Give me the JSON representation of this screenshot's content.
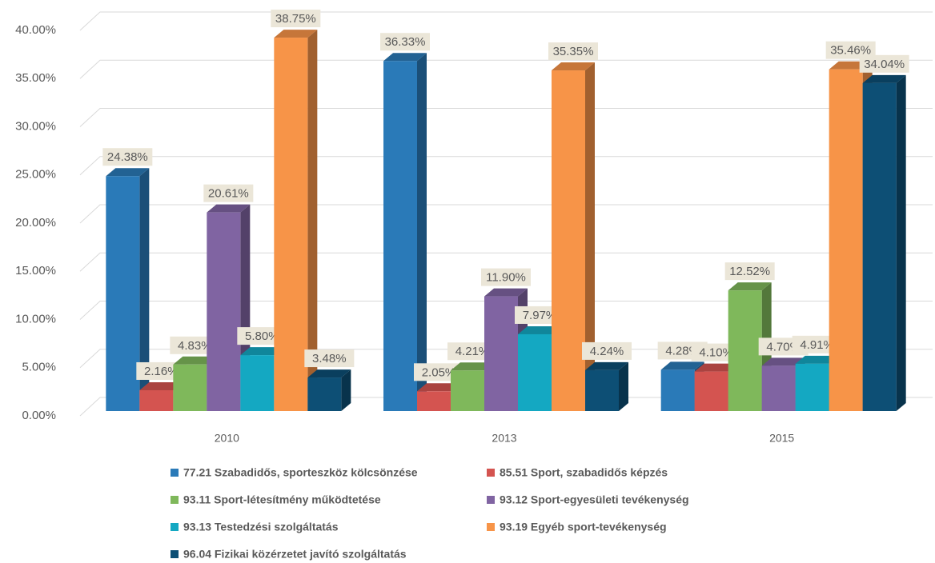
{
  "chart_data": {
    "type": "bar",
    "categories": [
      "2010",
      "2013",
      "2015"
    ],
    "series": [
      {
        "name": "77.21 Szabadidős, sporteszköz kölcsönzése",
        "color": "#2a7ab8",
        "values": [
          24.38,
          36.33,
          4.28
        ],
        "value_labels": [
          "24.38%",
          "36.33%",
          "4.28%"
        ]
      },
      {
        "name": "85.51 Sport, szabadidős képzés",
        "color": "#d45450",
        "values": [
          2.16,
          2.05,
          4.1
        ],
        "value_labels": [
          "2.16%",
          "2.05%",
          "4.10%"
        ]
      },
      {
        "name": "93.11 Sport-létesítmény működtetése",
        "color": "#7fb85b",
        "values": [
          4.83,
          4.21,
          12.52
        ],
        "value_labels": [
          "4.83%",
          "4.21%",
          "12.52%"
        ]
      },
      {
        "name": "93.12 Sport-egyesületi tevékenység",
        "color": "#8064a2",
        "values": [
          20.61,
          11.9,
          4.7
        ],
        "value_labels": [
          "20.61%",
          "11.90%",
          "4.70%"
        ]
      },
      {
        "name": "93.13 Testedzési szolgáltatás",
        "color": "#14a8c2",
        "values": [
          5.8,
          7.97,
          4.91
        ],
        "value_labels": [
          "5.80%",
          "7.97%",
          "4.91%"
        ]
      },
      {
        "name": "93.19 Egyéb sport-tevékenység",
        "color": "#f79448",
        "values": [
          38.75,
          35.35,
          35.46
        ],
        "value_labels": [
          "38.75%",
          "35.35%",
          "35.46%"
        ]
      },
      {
        "name": "96.04 Fizikai közérzetet javító szolgáltatás",
        "color": "#0d4f75",
        "values": [
          3.48,
          4.24,
          34.04
        ],
        "value_labels": [
          "3.48%",
          "4.24%",
          "34.04%"
        ]
      }
    ],
    "ylim": [
      0,
      40
    ],
    "yticks": [
      {
        "value": 0,
        "label": "0.00%"
      },
      {
        "value": 5,
        "label": "5.00%"
      },
      {
        "value": 10,
        "label": "10.00%"
      },
      {
        "value": 15,
        "label": "15.00%"
      },
      {
        "value": 20,
        "label": "20.00%"
      },
      {
        "value": 25,
        "label": "25.00%"
      },
      {
        "value": 30,
        "label": "30.00%"
      },
      {
        "value": 35,
        "label": "35.00%"
      },
      {
        "value": 40,
        "label": "40.00%"
      }
    ],
    "grid": true
  }
}
